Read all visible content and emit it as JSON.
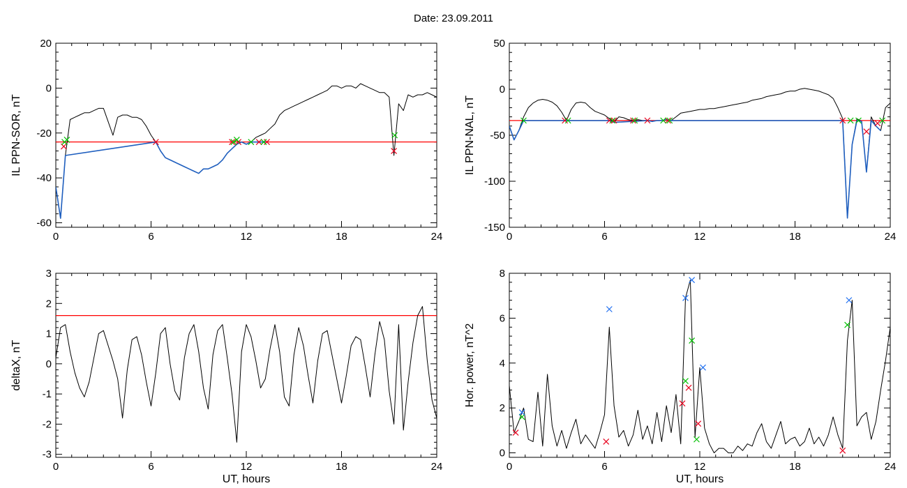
{
  "page": {
    "title": "Date:  23.09.2011"
  },
  "colors": {
    "trace": "#000000",
    "fit": "#1f5fbf",
    "threshold": "#ff0000",
    "marker_red": "#e8001c",
    "marker_green": "#00c000",
    "marker_blue": "#1f6ff0"
  },
  "chart_data": [
    {
      "id": "sor",
      "type": "line",
      "xlabel": "UT, hours",
      "ylabel": "IL PPN-SOR, nT",
      "xlim": [
        0,
        24
      ],
      "ylim": [
        -62,
        20
      ],
      "xticks": [
        0,
        6,
        12,
        18,
        24
      ],
      "yticks": [
        -60,
        -40,
        -20,
        0,
        20
      ],
      "threshold": -24,
      "series": [
        {
          "role": "trace",
          "color": "#000000",
          "x": [
            0,
            0.3,
            0.6,
            0.9,
            1.2,
            1.5,
            1.8,
            2.1,
            2.4,
            2.7,
            3.0,
            3.3,
            3.6,
            3.9,
            4.2,
            4.5,
            4.8,
            5.1,
            5.4,
            5.7,
            6.0,
            6.3,
            6.6,
            6.9,
            7.2,
            7.5,
            7.8,
            8.1,
            8.4,
            8.7,
            9.0,
            9.3,
            9.6,
            9.9,
            10.2,
            10.5,
            10.8,
            11.1,
            11.4,
            11.7,
            12.0,
            12.3,
            12.6,
            12.9,
            13.2,
            13.5,
            13.8,
            14.1,
            14.4,
            14.7,
            15.0,
            15.3,
            15.6,
            15.9,
            16.2,
            16.5,
            16.8,
            17.1,
            17.4,
            17.7,
            18.0,
            18.3,
            18.6,
            18.9,
            19.2,
            19.5,
            19.8,
            20.1,
            20.4,
            20.7,
            21.0,
            21.3,
            21.6,
            21.9,
            22.2,
            22.5,
            22.8,
            23.1,
            23.4,
            23.7,
            24.0
          ],
          "y": [
            -44,
            -58,
            -30,
            -14,
            -13,
            -12,
            -11,
            -11,
            -10,
            -9,
            -9,
            -15,
            -21,
            -13,
            -12,
            -12,
            -13,
            -13,
            -14,
            -17,
            -21,
            -24,
            -28,
            -31,
            -32,
            -33,
            -34,
            -35,
            -36,
            -37,
            -38,
            -36,
            -36,
            -35,
            -34,
            -32,
            -29,
            -27,
            -25,
            -24,
            -25,
            -24,
            -22,
            -21,
            -20,
            -18,
            -16,
            -12,
            -10,
            -9,
            -8,
            -7,
            -6,
            -5,
            -4,
            -3,
            -2,
            -1,
            1,
            1,
            0,
            1,
            1,
            0,
            2,
            1,
            0,
            -1,
            -2,
            -2,
            -4,
            -30,
            -7,
            -10,
            -3,
            -4,
            -3,
            -3,
            -2,
            -3,
            -4
          ]
        },
        {
          "role": "fit",
          "color": "#1f5fbf",
          "x": [
            0,
            0.3,
            0.6,
            6.3,
            6.6,
            6.9,
            7.2,
            7.5,
            7.8,
            8.1,
            8.4,
            8.7,
            9.0,
            9.3,
            9.6,
            9.9,
            10.2,
            10.5,
            10.8,
            11.1,
            11.4,
            11.7,
            12.0,
            12.3,
            12.6,
            12.9,
            13.2
          ],
          "y": [
            -44,
            -58,
            -30,
            -24,
            -28,
            -31,
            -32,
            -33,
            -34,
            -35,
            -36,
            -37,
            -38,
            -36,
            -36,
            -35,
            -34,
            -32,
            -29,
            -27,
            -25,
            -24,
            -25,
            -24,
            -24,
            -24,
            -24
          ]
        }
      ],
      "markers": [
        {
          "color": "red",
          "x": [
            0.5,
            6.3,
            11.1,
            11.5,
            12.8,
            13.3,
            21.3
          ],
          "y": [
            -26,
            -24,
            -24,
            -24,
            -24,
            -24,
            -28
          ]
        },
        {
          "color": "green",
          "x": [
            0.55,
            0.7,
            11.2,
            11.4,
            12.3,
            13.1,
            21.35
          ],
          "y": [
            -24,
            -23,
            -24,
            -23,
            -24,
            -24,
            -21
          ]
        }
      ]
    },
    {
      "id": "nal",
      "type": "line",
      "xlabel": "UT, hours",
      "ylabel": "IL PPN-NAL, nT",
      "xlim": [
        0,
        24
      ],
      "ylim": [
        -150,
        50
      ],
      "xticks": [
        0,
        6,
        12,
        18,
        24
      ],
      "yticks": [
        -150,
        -100,
        -50,
        0,
        50
      ],
      "threshold": -34,
      "series": [
        {
          "role": "trace",
          "color": "#000000",
          "x": [
            0,
            0.3,
            0.6,
            0.9,
            1.2,
            1.5,
            1.8,
            2.1,
            2.4,
            2.7,
            3.0,
            3.3,
            3.6,
            3.9,
            4.2,
            4.5,
            4.8,
            5.1,
            5.4,
            5.7,
            6.0,
            6.3,
            6.6,
            6.9,
            7.2,
            7.5,
            7.8,
            8.1,
            8.4,
            8.7,
            9.0,
            9.3,
            9.6,
            9.9,
            10.2,
            10.5,
            10.8,
            11.1,
            11.4,
            11.7,
            12.0,
            12.3,
            12.6,
            12.9,
            13.2,
            13.5,
            13.8,
            14.1,
            14.4,
            14.7,
            15.0,
            15.3,
            15.6,
            15.9,
            16.2,
            16.5,
            16.8,
            17.1,
            17.4,
            17.7,
            18.0,
            18.3,
            18.6,
            18.9,
            19.2,
            19.5,
            19.8,
            20.1,
            20.4,
            20.7,
            21.0,
            21.3,
            21.6,
            21.9,
            22.2,
            22.5,
            22.8,
            23.1,
            23.4,
            23.7,
            24.0
          ],
          "y": [
            -40,
            -55,
            -45,
            -30,
            -20,
            -15,
            -12,
            -11,
            -12,
            -14,
            -18,
            -25,
            -34,
            -22,
            -15,
            -14,
            -15,
            -20,
            -24,
            -26,
            -28,
            -32,
            -36,
            -30,
            -31,
            -33,
            -34,
            -33,
            -34,
            -34,
            -35,
            -34,
            -34,
            -33,
            -34,
            -30,
            -26,
            -25,
            -24,
            -23,
            -22,
            -22,
            -21,
            -21,
            -20,
            -19,
            -18,
            -17,
            -16,
            -15,
            -14,
            -12,
            -11,
            -10,
            -8,
            -7,
            -6,
            -5,
            -3,
            -2,
            -2,
            0,
            1,
            0,
            -1,
            -2,
            -4,
            -6,
            -10,
            -20,
            -32,
            -140,
            -60,
            -32,
            -35,
            -90,
            -30,
            -40,
            -45,
            -20,
            -15
          ]
        },
        {
          "role": "fit",
          "color": "#1f5fbf",
          "x": [
            0,
            0.3,
            0.6,
            0.9,
            6.3,
            6.6,
            8.7,
            9.0,
            9.3,
            9.6,
            9.9,
            10.2,
            21.0,
            21.3,
            21.6,
            21.9,
            22.2,
            22.5,
            22.8,
            23.1,
            23.4
          ],
          "y": [
            -40,
            -55,
            -45,
            -34,
            -34,
            -36,
            -34,
            -35,
            -34,
            -34,
            -33,
            -34,
            -34,
            -140,
            -60,
            -34,
            -35,
            -90,
            -34,
            -40,
            -45
          ]
        }
      ],
      "markers": [
        {
          "color": "red",
          "x": [
            3.5,
            6.3,
            6.6,
            7.8,
            8.7,
            10.0,
            21.0,
            22.5,
            23.2
          ],
          "y": [
            -34,
            -34,
            -34,
            -34,
            -34,
            -34,
            -34,
            -46,
            -37
          ]
        },
        {
          "color": "green",
          "x": [
            0.9,
            3.7,
            6.5,
            7.9,
            9.7,
            10.1,
            21.5,
            22.0,
            23.5
          ],
          "y": [
            -34,
            -34,
            -34,
            -34,
            -34,
            -34,
            -34,
            -34,
            -34
          ]
        }
      ]
    },
    {
      "id": "deltax",
      "type": "line",
      "xlabel": "UT, hours",
      "ylabel": "deltaX, nT",
      "xlim": [
        0,
        24
      ],
      "ylim": [
        -3.1,
        3
      ],
      "xticks": [
        0,
        6,
        12,
        18,
        24
      ],
      "yticks": [
        -3,
        -2,
        -1,
        0,
        1,
        2,
        3
      ],
      "threshold": 1.6,
      "series": [
        {
          "role": "trace",
          "color": "#000000",
          "x": [
            0,
            0.3,
            0.6,
            0.9,
            1.2,
            1.5,
            1.8,
            2.1,
            2.4,
            2.7,
            3.0,
            3.3,
            3.6,
            3.9,
            4.2,
            4.5,
            4.8,
            5.1,
            5.4,
            5.7,
            6.0,
            6.3,
            6.6,
            6.9,
            7.2,
            7.5,
            7.8,
            8.1,
            8.4,
            8.7,
            9.0,
            9.3,
            9.6,
            9.9,
            10.2,
            10.5,
            10.8,
            11.1,
            11.4,
            11.7,
            12.0,
            12.3,
            12.6,
            12.9,
            13.2,
            13.5,
            13.8,
            14.1,
            14.4,
            14.7,
            15.0,
            15.3,
            15.6,
            15.9,
            16.2,
            16.5,
            16.8,
            17.1,
            17.4,
            17.7,
            18.0,
            18.3,
            18.6,
            18.9,
            19.2,
            19.5,
            19.8,
            20.1,
            20.4,
            20.7,
            21.0,
            21.3,
            21.6,
            21.9,
            22.2,
            22.5,
            22.8,
            23.1,
            23.4,
            23.7,
            24.0
          ],
          "y": [
            0.2,
            1.2,
            1.3,
            0.4,
            -0.3,
            -0.8,
            -1.1,
            -0.6,
            0.2,
            1.0,
            1.1,
            0.6,
            0.1,
            -0.5,
            -1.8,
            -0.2,
            0.8,
            0.9,
            0.3,
            -0.6,
            -1.4,
            -0.3,
            1.0,
            1.2,
            0.0,
            -0.9,
            -1.2,
            0.2,
            1.0,
            1.3,
            0.4,
            -0.8,
            -1.5,
            0.3,
            1.1,
            1.3,
            0.2,
            -1.0,
            -2.6,
            0.4,
            1.3,
            0.9,
            0.1,
            -0.8,
            -0.5,
            0.5,
            1.3,
            0.4,
            -1.1,
            -1.4,
            0.3,
            1.2,
            0.6,
            -0.4,
            -1.3,
            0.1,
            1.0,
            1.1,
            0.3,
            -0.5,
            -1.3,
            -0.4,
            0.6,
            0.9,
            0.8,
            -0.1,
            -1.1,
            0.3,
            1.4,
            0.8,
            -0.9,
            -2.0,
            1.3,
            -2.2,
            -0.6,
            0.7,
            1.6,
            1.9,
            0.1,
            -1.2,
            -1.8
          ]
        }
      ],
      "markers": []
    },
    {
      "id": "power",
      "type": "line",
      "xlabel": "UT, hours",
      "ylabel": "Hor. power, nT^2",
      "xlim": [
        0,
        24
      ],
      "ylim": [
        -0.2,
        8
      ],
      "xticks": [
        0,
        6,
        12,
        18,
        24
      ],
      "yticks": [
        0,
        2,
        4,
        6,
        8
      ],
      "threshold": null,
      "series": [
        {
          "role": "trace",
          "color": "#000000",
          "x": [
            0,
            0.3,
            0.6,
            0.9,
            1.2,
            1.5,
            1.8,
            2.1,
            2.4,
            2.7,
            3.0,
            3.3,
            3.6,
            3.9,
            4.2,
            4.5,
            4.8,
            5.1,
            5.4,
            5.7,
            6.0,
            6.3,
            6.6,
            6.9,
            7.2,
            7.5,
            7.8,
            8.1,
            8.4,
            8.7,
            9.0,
            9.3,
            9.6,
            9.9,
            10.2,
            10.5,
            10.8,
            11.1,
            11.4,
            11.7,
            12.0,
            12.3,
            12.6,
            12.9,
            13.2,
            13.5,
            13.8,
            14.1,
            14.4,
            14.7,
            15.0,
            15.3,
            15.6,
            15.9,
            16.2,
            16.5,
            16.8,
            17.1,
            17.4,
            17.7,
            18.0,
            18.3,
            18.6,
            18.9,
            19.2,
            19.5,
            19.8,
            20.1,
            20.4,
            20.7,
            21.0,
            21.3,
            21.6,
            21.9,
            22.2,
            22.5,
            22.8,
            23.1,
            23.4,
            23.7,
            24.0
          ],
          "y": [
            3.0,
            0.9,
            1.4,
            2.0,
            0.6,
            0.5,
            2.7,
            0.3,
            3.5,
            1.2,
            0.3,
            1.0,
            0.2,
            0.9,
            1.5,
            0.4,
            0.8,
            0.5,
            0.2,
            0.9,
            1.7,
            5.6,
            2.1,
            0.7,
            1.0,
            0.3,
            0.8,
            1.9,
            0.6,
            1.2,
            0.4,
            1.8,
            0.5,
            2.1,
            0.9,
            2.6,
            0.4,
            6.9,
            7.7,
            0.7,
            3.8,
            1.1,
            0.4,
            0.0,
            0.2,
            0.2,
            0.0,
            0.0,
            0.3,
            0.1,
            0.4,
            0.3,
            0.9,
            1.3,
            0.5,
            0.2,
            0.8,
            1.4,
            0.4,
            0.6,
            0.7,
            0.3,
            0.5,
            1.1,
            0.4,
            0.7,
            0.3,
            0.8,
            1.6,
            0.8,
            0.2,
            5.0,
            6.8,
            1.2,
            1.6,
            1.8,
            0.6,
            1.4,
            2.8,
            4.1,
            5.6
          ]
        }
      ],
      "markers": [
        {
          "color": "red",
          "x": [
            0.4,
            6.1,
            10.9,
            11.3,
            11.9,
            21.0
          ],
          "y": [
            0.9,
            0.5,
            2.2,
            2.9,
            1.3,
            0.1
          ]
        },
        {
          "color": "green",
          "x": [
            0.8,
            11.1,
            11.5,
            11.8,
            21.3
          ],
          "y": [
            1.6,
            3.2,
            5.0,
            0.6,
            5.7
          ]
        },
        {
          "color": "blue",
          "x": [
            0.8,
            6.3,
            11.1,
            11.5,
            12.2,
            21.4
          ],
          "y": [
            1.8,
            6.4,
            6.9,
            7.7,
            3.8,
            6.8
          ]
        }
      ]
    }
  ]
}
